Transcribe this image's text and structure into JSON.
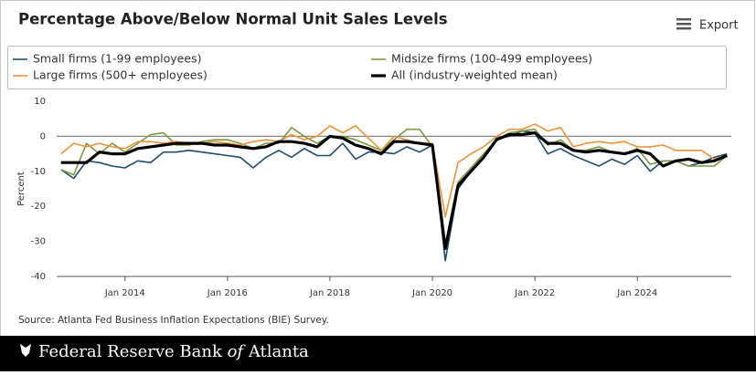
{
  "export_label": "Export",
  "source": "Source: Atlanta Fed Business Inflation Expectations (BIE) Survey.",
  "footer": {
    "name": "Federal Reserve Bank",
    "of": "of",
    "city": "Atlanta"
  },
  "chart_data": {
    "type": "line",
    "title": "Percentage Above/Below Normal Unit Sales Levels",
    "ylabel": "Percent",
    "x": [
      "2012-10",
      "2013-01",
      "2013-04",
      "2013-07",
      "2013-10",
      "2014-01",
      "2014-04",
      "2014-07",
      "2014-10",
      "2015-01",
      "2015-04",
      "2015-07",
      "2015-10",
      "2016-01",
      "2016-04",
      "2016-07",
      "2016-10",
      "2017-01",
      "2017-04",
      "2017-07",
      "2017-10",
      "2018-01",
      "2018-04",
      "2018-07",
      "2018-10",
      "2019-01",
      "2019-04",
      "2019-07",
      "2019-10",
      "2020-01",
      "2020-04",
      "2020-07",
      "2020-10",
      "2021-01",
      "2021-04",
      "2021-07",
      "2021-10",
      "2022-01",
      "2022-04",
      "2022-07",
      "2022-10",
      "2023-01",
      "2023-04",
      "2023-07",
      "2023-10",
      "2024-01",
      "2024-04",
      "2024-07",
      "2024-10",
      "2025-01",
      "2025-04",
      "2025-07",
      "2025-10"
    ],
    "series": [
      {
        "name": "Small firms (1-99 employees)",
        "color": "#1f4e6e",
        "width": 1.6,
        "values": [
          -9.5,
          -12,
          -7,
          -7.5,
          -8.5,
          -9,
          -7,
          -7.5,
          -4.5,
          -4.5,
          -4,
          -4.5,
          -5,
          -5.5,
          -6,
          -9,
          -6,
          -4,
          -6,
          -3.5,
          -5.5,
          -5.5,
          -2,
          -6.5,
          -4.5,
          -4.5,
          -5,
          -3,
          -4.5,
          -2.5,
          -35.5,
          -15,
          -10,
          -6,
          -0.5,
          0,
          1.5,
          1,
          -5,
          -3.5,
          -5.5,
          -7,
          -8.5,
          -6.5,
          -8,
          -5.5,
          -10,
          -7,
          -7,
          -8.5,
          -7.5,
          -6,
          -5
        ]
      },
      {
        "name": "Midsize firms (100-499 employees)",
        "color": "#7a9a3c",
        "width": 1.6,
        "values": [
          -9.5,
          -11,
          -2,
          -5,
          -2,
          -4.5,
          -2,
          0.5,
          1,
          -2.5,
          -2.5,
          -1.5,
          -1,
          -1,
          -2,
          -3.5,
          -2,
          -2,
          2.5,
          0,
          -2,
          0,
          0,
          -1,
          -2.5,
          -4,
          -1,
          2,
          2,
          -3,
          -31,
          -13,
          -9,
          -5,
          -1,
          1,
          1.5,
          2,
          -2.5,
          -1,
          -4,
          -4,
          -3,
          -4.5,
          -5,
          -3.5,
          -8,
          -7,
          -7,
          -8.5,
          -8.5,
          -8.5,
          -5.5
        ]
      },
      {
        "name": "Large firms (500+ employees)",
        "color": "#f0923a",
        "width": 1.6,
        "values": [
          -5,
          -2,
          -3,
          -2,
          -3,
          -3.5,
          -1.5,
          -1.5,
          -2,
          -1.5,
          -2,
          -2,
          -1.5,
          -2,
          -2.5,
          -1.5,
          -1,
          -1.5,
          0.5,
          -1,
          0,
          3,
          1,
          3,
          -0.5,
          -4,
          0,
          -1,
          -2,
          -2,
          -23,
          -7.5,
          -5,
          -3,
          0,
          2,
          2,
          3.5,
          1.5,
          2.5,
          -3,
          -2,
          -1.5,
          -2,
          -1.5,
          -3,
          -3,
          -2.5,
          -4,
          -4,
          -4,
          -6.5,
          -5.5
        ]
      },
      {
        "name": "All (industry-weighted mean)",
        "color": "#000000",
        "width": 3.2,
        "values": [
          -7.5,
          -7.5,
          -7.5,
          -4.5,
          -5,
          -5,
          -3.5,
          -3,
          -2.5,
          -2,
          -2,
          -2,
          -2.5,
          -2.5,
          -3,
          -3.5,
          -3,
          -1.5,
          -1.5,
          -2,
          -3,
          0,
          -0.5,
          -2.5,
          -3.5,
          -5,
          -1.5,
          -1.5,
          -2,
          -2.5,
          -32,
          -14,
          -10,
          -6,
          -1,
          0.5,
          0.5,
          1,
          -2,
          -2,
          -4,
          -4.5,
          -4,
          -4.5,
          -5,
          -4,
          -5,
          -8.5,
          -7,
          -6.5,
          -7.5,
          -7,
          -5.5
        ]
      }
    ],
    "xlim": [
      "2012-09",
      "2025-11"
    ],
    "xticks": [
      {
        "value": "2014-01",
        "label": "Jan 2014"
      },
      {
        "value": "2016-01",
        "label": "Jan 2016"
      },
      {
        "value": "2018-01",
        "label": "Jan 2018"
      },
      {
        "value": "2020-01",
        "label": "Jan 2020"
      },
      {
        "value": "2022-01",
        "label": "Jan 2022"
      },
      {
        "value": "2024-01",
        "label": "Jan 2024"
      }
    ],
    "ylim": [
      -40,
      10
    ],
    "yticks": [
      -40,
      -30,
      -20,
      -10,
      0,
      10
    ],
    "zero_line": true
  }
}
